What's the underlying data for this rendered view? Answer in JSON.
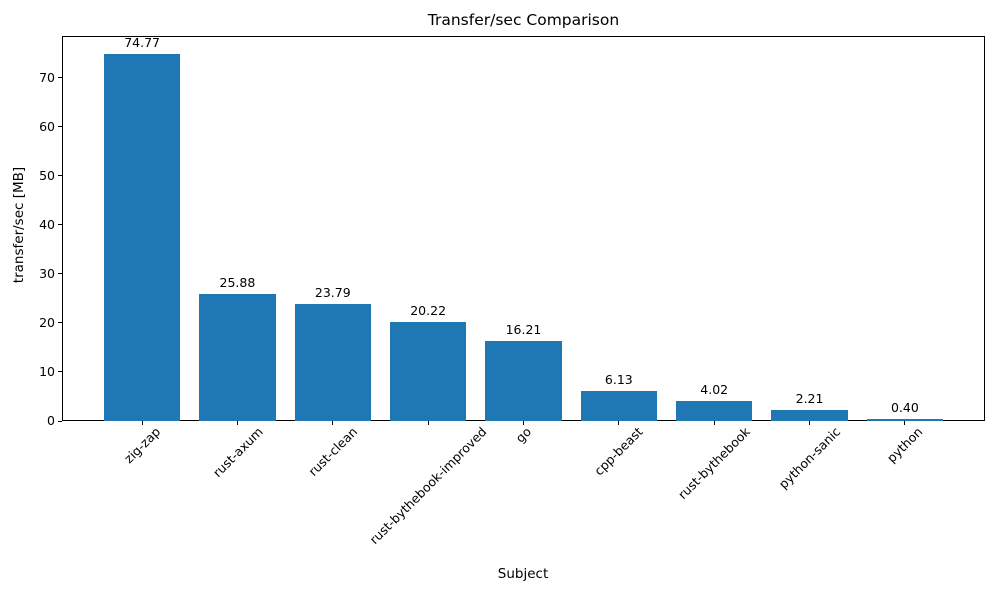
{
  "chart_data": {
    "type": "bar",
    "title": "Transfer/sec Comparison",
    "xlabel": "Subject",
    "ylabel": "transfer/sec [MB]",
    "categories": [
      "zig-zap",
      "rust-axum",
      "rust-clean",
      "rust-bythebook-improved",
      "go",
      "cpp-beast",
      "rust-bythebook",
      "python-sanic",
      "python"
    ],
    "values": [
      74.77,
      25.88,
      23.79,
      20.22,
      16.21,
      6.13,
      4.02,
      2.21,
      0.4
    ],
    "value_labels": [
      "74.77",
      "25.88",
      "23.79",
      "20.22",
      "16.21",
      "6.13",
      "4.02",
      "2.21",
      "0.40"
    ],
    "ylim": [
      0,
      78.5
    ],
    "yticks": [
      0,
      10,
      20,
      30,
      40,
      50,
      60,
      70
    ],
    "x_tick_rotation_deg": 45,
    "bar_color": "#1f77b4",
    "background_color": "#ffffff",
    "grid": false,
    "legend_position": "none"
  }
}
